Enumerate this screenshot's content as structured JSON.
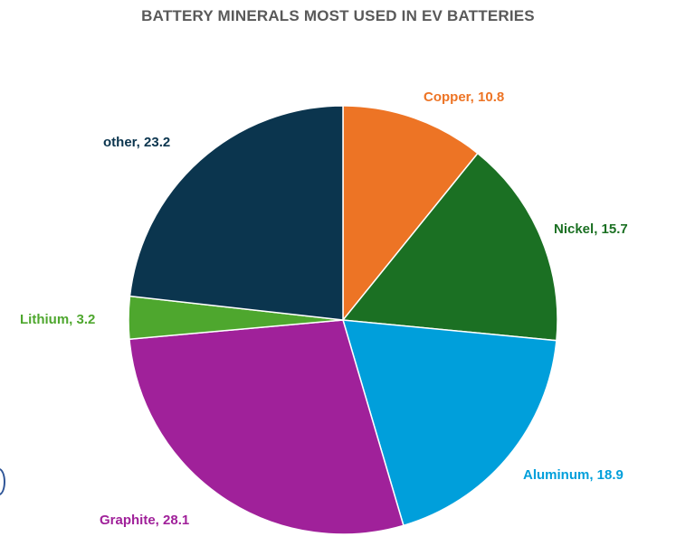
{
  "chart_data": {
    "type": "pie",
    "title": "BATTERY MINERALS MOST USED IN EV BATTERIES",
    "slices": [
      {
        "label": "Copper",
        "value": 10.8,
        "color": "#ED7425",
        "display": "Copper, 10.8"
      },
      {
        "label": "Nickel",
        "value": 15.7,
        "color": "#1B7023",
        "display": "Nickel, 15.7"
      },
      {
        "label": "Aluminum",
        "value": 18.9,
        "color": "#009FDB",
        "display": "Aluminum, 18.9"
      },
      {
        "label": "Graphite",
        "value": 28.1,
        "color": "#A0219A",
        "display": "Graphite, 28.1"
      },
      {
        "label": "Lithium",
        "value": 3.2,
        "color": "#4EA72E",
        "display": "Lithium, 3.2"
      },
      {
        "label": "other",
        "value": 23.2,
        "color": "#0B354E",
        "display": "other, 23.2"
      }
    ],
    "start_angle": "12 o'clock",
    "direction": "clockwise",
    "legend": "none (data labels outside slices)"
  }
}
